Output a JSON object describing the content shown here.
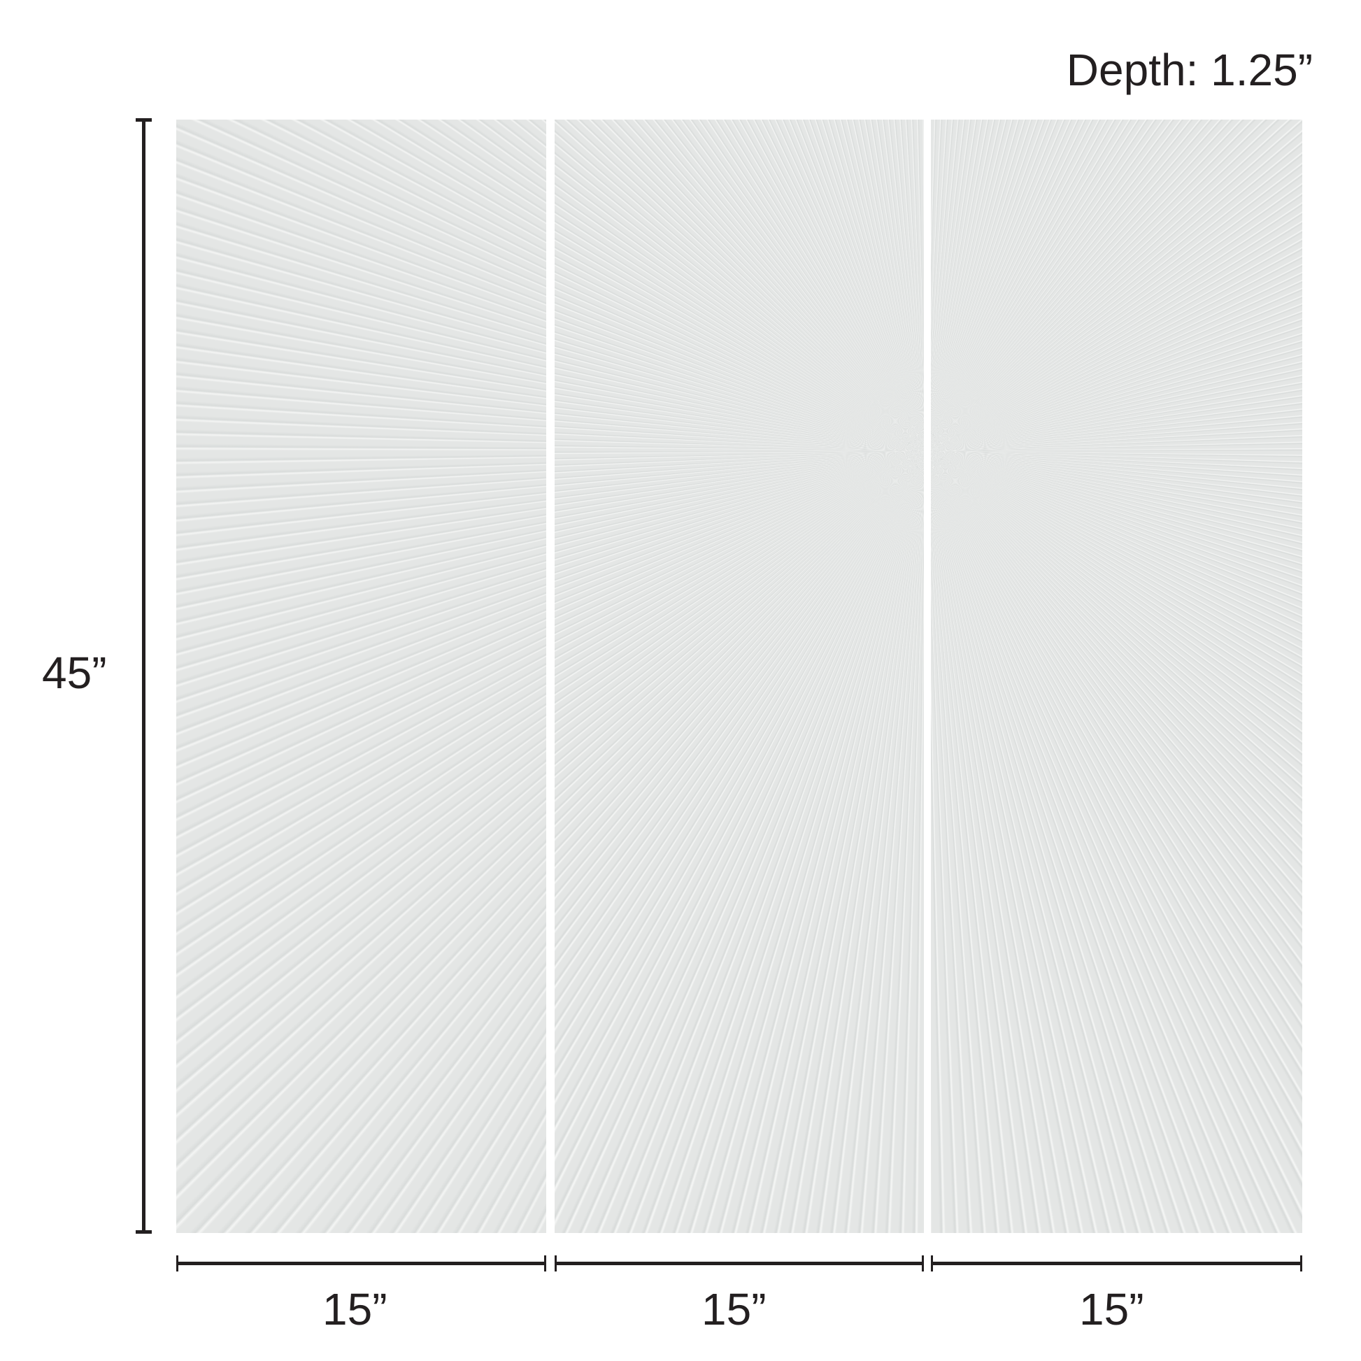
{
  "depth_label": "Depth: 1.25”",
  "height_label": "45”",
  "width_labels": [
    "15”",
    "15”",
    "15”"
  ],
  "panel_count": 3,
  "colors": {
    "panel": "#e4e6e5",
    "dimension_line": "#231f20"
  }
}
